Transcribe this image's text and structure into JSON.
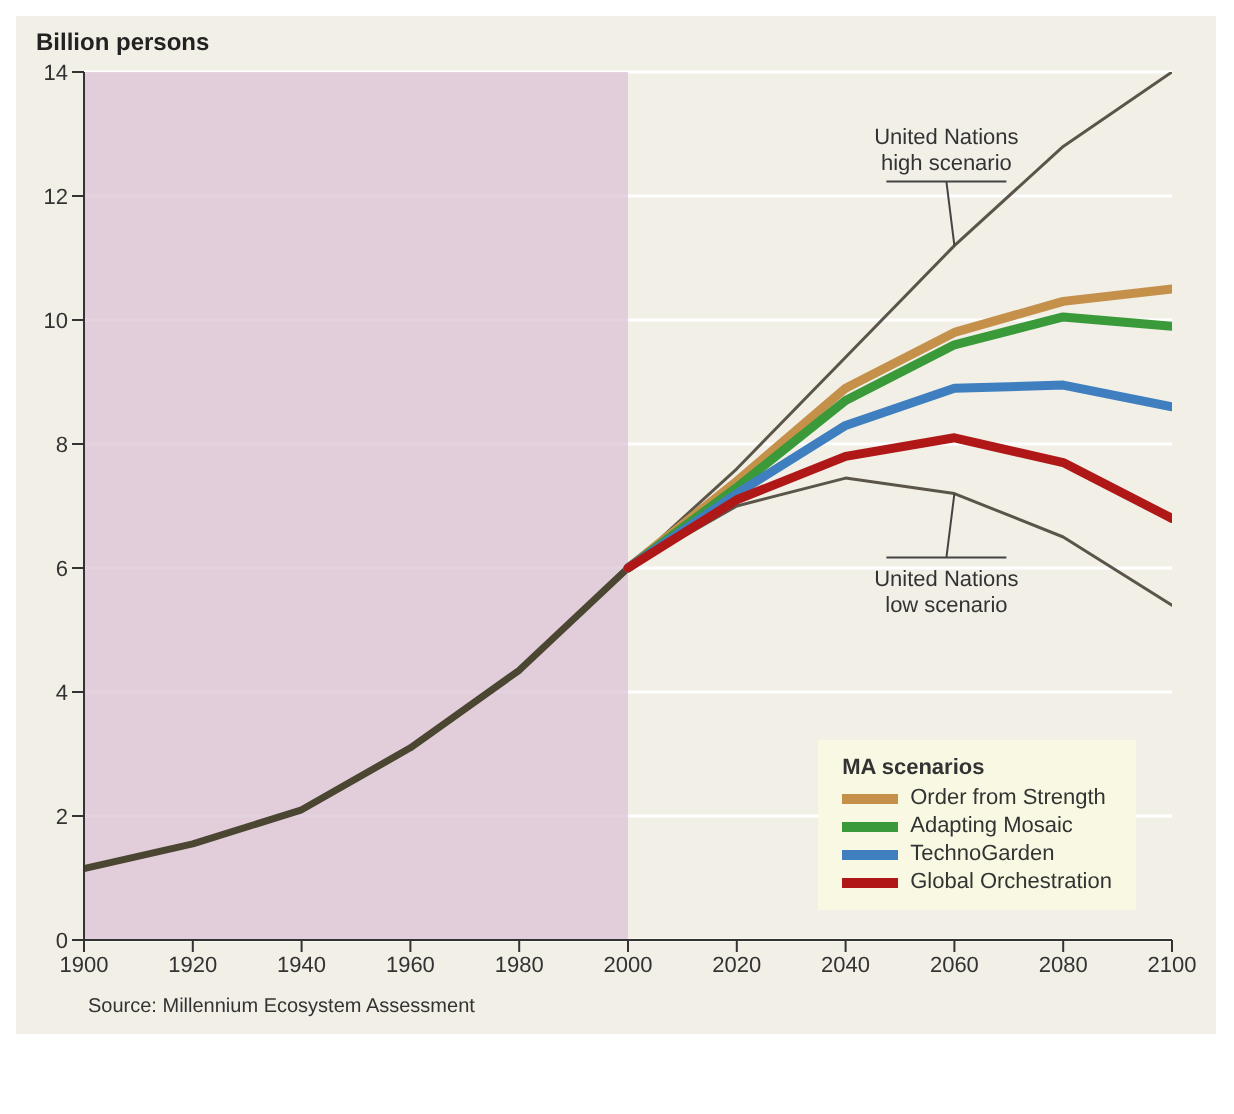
{
  "chart_data": {
    "type": "line",
    "ylabel": "Billion persons",
    "legend_title": "MA scenarios",
    "legend": "bottom right",
    "grid": "y",
    "marker": "none",
    "xlim": [
      1900,
      2100
    ],
    "xticks": [
      1900,
      1920,
      1940,
      1960,
      1980,
      2000,
      2020,
      2040,
      2060,
      2080,
      2100
    ],
    "ylim": [
      0,
      14
    ],
    "yticks": [
      0,
      2,
      4,
      6,
      8,
      10,
      12,
      14
    ],
    "bands": [
      {
        "axis": "x",
        "from": 1900,
        "to": 2000,
        "color": "#dcc3d6"
      }
    ],
    "annotations": [
      {
        "text": "United Nations high scenario",
        "x": 2060,
        "y": 11.2
      },
      {
        "text": "United Nations low scenario",
        "x": 2060,
        "y": 7.2
      },
      "Source: Millennium Ecosystem Assessment"
    ],
    "series": [
      {
        "color": "#4b4632",
        "x": [
          1900,
          1920,
          1940,
          1960,
          1980,
          2000
        ],
        "values": [
          1.15,
          1.55,
          2.1,
          3.1,
          4.35,
          6.0
        ]
      },
      {
        "color": "#5a5548",
        "x": [
          2000,
          2020,
          2040,
          2060,
          2080,
          2100
        ],
        "values": [
          6.0,
          7.6,
          9.4,
          11.2,
          12.8,
          14.0
        ]
      },
      {
        "color": "#5a5548",
        "x": [
          2000,
          2020,
          2040,
          2060,
          2080,
          2100
        ],
        "values": [
          6.0,
          7.0,
          7.45,
          7.2,
          6.5,
          5.4
        ]
      },
      {
        "name": "Order from Strength",
        "color": "#c4904a",
        "x": [
          2000,
          2020,
          2040,
          2060,
          2080,
          2100
        ],
        "values": [
          6.0,
          7.4,
          8.9,
          9.8,
          10.3,
          10.5
        ]
      },
      {
        "name": "Adapting Mosaic",
        "color": "#3a9a3a",
        "x": [
          2000,
          2020,
          2040,
          2060,
          2080,
          2100
        ],
        "values": [
          6.0,
          7.3,
          8.7,
          9.6,
          10.05,
          9.9
        ]
      },
      {
        "name": "TechnoGarden",
        "color": "#3f7fc0",
        "x": [
          2000,
          2020,
          2040,
          2060,
          2080,
          2100
        ],
        "values": [
          6.0,
          7.2,
          8.3,
          8.9,
          8.95,
          8.6
        ]
      },
      {
        "name": "Global Orchestration",
        "color": "#b01818",
        "x": [
          2000,
          2020,
          2040,
          2060,
          2080,
          2100
        ],
        "values": [
          6.0,
          7.1,
          7.8,
          8.1,
          7.7,
          6.8
        ]
      }
    ]
  }
}
